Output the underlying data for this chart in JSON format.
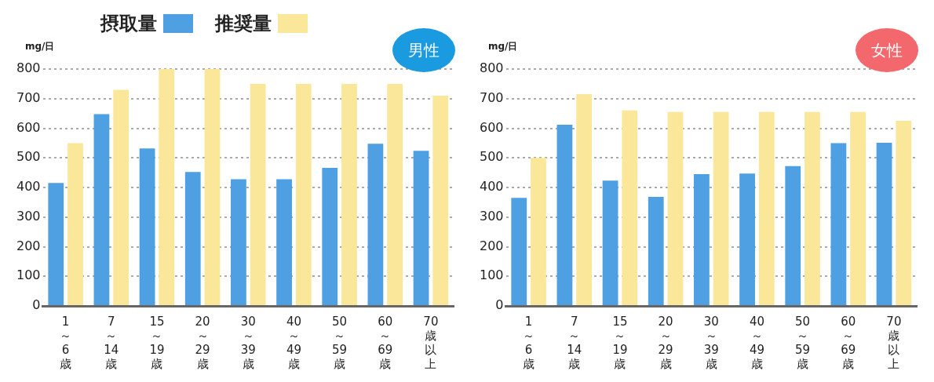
{
  "chart_data": [
    {
      "type": "bar",
      "title": "男性",
      "ylabel": "mg/日",
      "categories": [
        "1～6歳",
        "7～14歳",
        "15～19歳",
        "20～29歳",
        "30～39歳",
        "40～49歳",
        "50～59歳",
        "60～69歳",
        "70歳以上"
      ],
      "series": [
        {
          "name": "摂取量",
          "color": "#4f9fe3",
          "values": [
            415,
            648,
            532,
            452,
            428,
            428,
            466,
            548,
            524
          ]
        },
        {
          "name": "推奨量",
          "color": "#fbe79a",
          "values": [
            550,
            730,
            800,
            800,
            750,
            750,
            750,
            750,
            710
          ]
        }
      ],
      "ylim": [
        0,
        800
      ],
      "yticks": [
        0,
        100,
        200,
        300,
        400,
        500,
        600,
        700,
        800
      ],
      "grid": "y",
      "legend": "top"
    },
    {
      "type": "bar",
      "title": "女性",
      "ylabel": "mg/日",
      "categories": [
        "1～6歳",
        "7～14歳",
        "15～19歳",
        "20～29歳",
        "30～39歳",
        "40～49歳",
        "50～59歳",
        "60～69歳",
        "70歳以上"
      ],
      "series": [
        {
          "color": "#4f9fe3",
          "values": [
            365,
            612,
            423,
            368,
            445,
            447,
            472,
            550,
            551
          ]
        },
        {
          "color": "#fbe79a",
          "values": [
            500,
            715,
            660,
            655,
            655,
            655,
            655,
            655,
            625
          ]
        }
      ],
      "ylim": [
        0,
        800
      ],
      "yticks": [
        0,
        100,
        200,
        300,
        400,
        500,
        600,
        700,
        800
      ],
      "grid": "y",
      "legend": false
    }
  ]
}
